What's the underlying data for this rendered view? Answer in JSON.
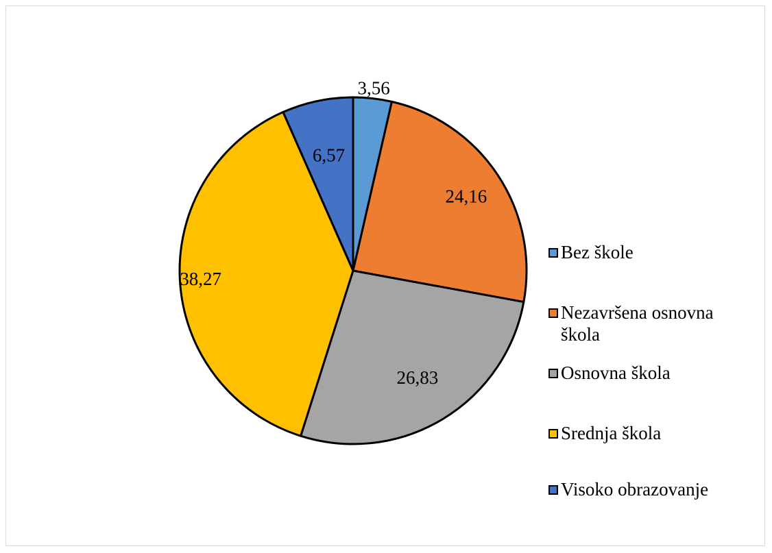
{
  "chart_data": {
    "type": "pie",
    "title": "",
    "categories": [
      "Bez škole",
      "Nezavršena osnovna škola",
      "Osnovna škola",
      "Srednja škola",
      "Visoko obrazovanje"
    ],
    "values": [
      3.56,
      24.16,
      26.83,
      38.27,
      6.57
    ],
    "data_labels": [
      "3,56",
      "24,16",
      "26,83",
      "38,27",
      "6,57"
    ],
    "colors": [
      "#5b9bd5",
      "#ed7d31",
      "#a5a5a5",
      "#ffc000",
      "#4472c4"
    ],
    "start_angle_deg": 0,
    "direction": "clockwise",
    "legend_position": "right"
  },
  "legend": {
    "items": [
      {
        "label": "Bez škole",
        "color": "#5b9bd5"
      },
      {
        "label": "Nezavršena osnovna škola",
        "color": "#ed7d31"
      },
      {
        "label": "Osnovna škola",
        "color": "#a5a5a5"
      },
      {
        "label": "Srednja škola",
        "color": "#ffc000"
      },
      {
        "label": "Visoko obrazovanje",
        "color": "#4472c4"
      }
    ]
  }
}
